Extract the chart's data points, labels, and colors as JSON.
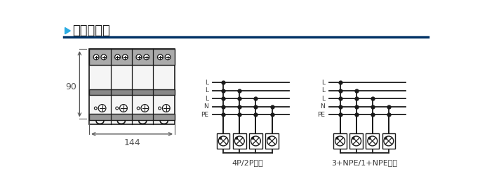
{
  "title": "尺寸原理图",
  "title_arrow_color": "#29ABE2",
  "title_line_color": "#003366",
  "bg_color": "#FFFFFF",
  "dim_90": "90",
  "dim_144": "144",
  "label_4p": "4P/2P模式",
  "label_3npe": "3+NPE/1+NPE模式",
  "lines_4p": [
    "L",
    "L",
    "L",
    "N",
    "PE"
  ],
  "lines_3npe": [
    "L",
    "L",
    "L",
    "N",
    "PE"
  ],
  "line_color": "#1a1a1a",
  "dim_color": "#555555",
  "gray_band_color": "#888888",
  "device_face": "#f0f0f0",
  "schem_line_labels_4p": [
    "L",
    "L",
    "L",
    "N",
    "PE"
  ],
  "schem_line_labels_3npe": [
    "L",
    "L",
    "L",
    "N",
    "PE"
  ],
  "n_lines_4p": 5,
  "n_lines_3npe": 4,
  "schem_4p_connect": [
    0,
    1,
    2,
    3,
    4
  ],
  "schem_3npe_connect": [
    0,
    1,
    2,
    3
  ]
}
